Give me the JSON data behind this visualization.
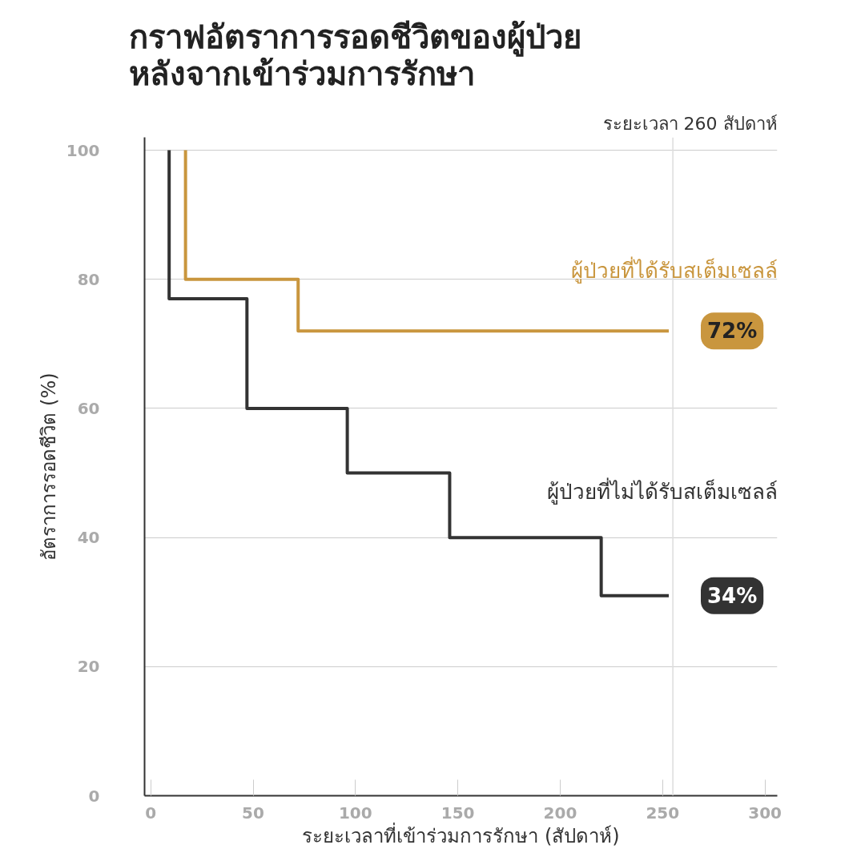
{
  "chart_data": {
    "type": "step",
    "title": "กราฟอัตราการรอดชีวิตของผู้ป่วย\nหลังจากเข้าร่วมการรักษา",
    "subtitle": "ระยะเวลา 260 สัปดาห์",
    "xlabel": "ระยะเวลาที่เข้าร่วมการรักษา (สัปดาห์)",
    "ylabel": "อัตราการรอดชีวิต (%)",
    "series": [
      {
        "name": "ผู้ป่วยที่ได้รับสเต็มเซลล์",
        "color": "#c9963e",
        "x": [
          17,
          17,
          72,
          253
        ],
        "values": [
          100,
          80,
          72,
          72
        ]
      },
      {
        "name": "ผู้ป่วยที่ไม่ได้รับสเต็มเซลล์",
        "color": "#333333",
        "x": [
          9,
          9,
          47,
          96,
          146,
          220,
          253
        ],
        "values": [
          100,
          77,
          60,
          50,
          40,
          31,
          31
        ]
      }
    ],
    "annotations": [
      {
        "text": "72%",
        "x": 253,
        "y": 72
      },
      {
        "text": "34%",
        "x": 253,
        "y": 31
      }
    ],
    "ref_lines": [
      {
        "axis": "x",
        "value": 255,
        "color": "#dddddd"
      }
    ],
    "xlim": [
      -3,
      306
    ],
    "ylim": [
      0,
      102
    ],
    "xticks": [
      0,
      50,
      100,
      150,
      200,
      250,
      300
    ],
    "yticks": [
      0,
      20,
      40,
      60,
      80,
      100
    ],
    "grid": "y",
    "line_style": "solid",
    "marker": "none"
  }
}
